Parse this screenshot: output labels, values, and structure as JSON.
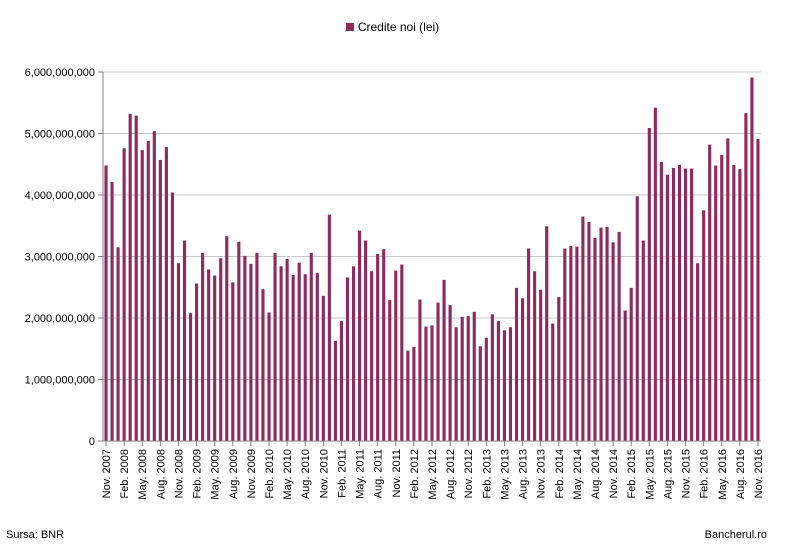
{
  "chart_data": {
    "type": "bar",
    "title": "",
    "xlabel": "",
    "ylabel": "",
    "ylim": [
      0,
      6000000000
    ],
    "yticks": [
      0,
      1000000000,
      2000000000,
      3000000000,
      4000000000,
      5000000000,
      6000000000
    ],
    "ytick_labels": [
      "0",
      "1,000,000,000",
      "2,000,000,000",
      "3,000,000,000",
      "4,000,000,000",
      "5,000,000,000",
      "6,000,000,000"
    ],
    "grid": true,
    "legend_position": "top-center",
    "series": [
      {
        "name": "Credite noi (lei)",
        "color": "#8e2b5e",
        "values": [
          4480000000,
          4210000000,
          3150000000,
          4760000000,
          5320000000,
          5290000000,
          4730000000,
          4880000000,
          5040000000,
          4570000000,
          4780000000,
          4040000000,
          2890000000,
          3260000000,
          2080000000,
          2560000000,
          3060000000,
          2790000000,
          2690000000,
          2970000000,
          3330000000,
          2580000000,
          3240000000,
          3010000000,
          2880000000,
          3060000000,
          2470000000,
          2090000000,
          3060000000,
          2840000000,
          2960000000,
          2700000000,
          2900000000,
          2710000000,
          3060000000,
          2730000000,
          2360000000,
          3680000000,
          1630000000,
          1950000000,
          2660000000,
          2840000000,
          3420000000,
          3260000000,
          2760000000,
          3040000000,
          3120000000,
          2290000000,
          2770000000,
          2870000000,
          1470000000,
          1530000000,
          2300000000,
          1860000000,
          1880000000,
          2250000000,
          2620000000,
          2210000000,
          1850000000,
          2020000000,
          2030000000,
          2100000000,
          1540000000,
          1680000000,
          2060000000,
          1950000000,
          1800000000,
          1850000000,
          2490000000,
          2320000000,
          3130000000,
          2760000000,
          2460000000,
          3490000000,
          1910000000,
          2340000000,
          3130000000,
          3170000000,
          3160000000,
          3650000000,
          3560000000,
          3300000000,
          3470000000,
          3480000000,
          3230000000,
          3400000000,
          2120000000,
          2490000000,
          3980000000,
          3260000000,
          5090000000,
          5420000000,
          4540000000,
          4330000000,
          4440000000,
          4490000000,
          4430000000,
          4430000000,
          2890000000,
          3750000000,
          4820000000,
          4480000000,
          4650000000,
          4920000000,
          4490000000,
          4420000000,
          5330000000,
          5910000000,
          4910000000
        ]
      }
    ],
    "x_tick_labels": [
      "Nov. 2007",
      "Feb. 2008",
      "May. 2008",
      "Aug. 2008",
      "Nov. 2008",
      "Feb. 2009",
      "May. 2009",
      "Aug. 2009",
      "Nov. 2009",
      "Feb. 2010",
      "May. 2010",
      "Aug. 2010",
      "Nov. 2010",
      "Feb. 2011",
      "May. 2011",
      "Aug. 2011",
      "Nov. 2011",
      "Feb. 2012",
      "May. 2012",
      "Aug. 2012",
      "Nov. 2012",
      "Feb. 2013",
      "May. 2013",
      "Aug. 2013",
      "Nov. 2013",
      "Feb. 2014",
      "May. 2014",
      "Aug. 2014",
      "Nov. 2014",
      "Feb. 2015",
      "May. 2015",
      "Aug. 2015",
      "Nov. 2015",
      "Feb. 2016",
      "May. 2016",
      "Aug. 2016",
      "Nov. 2016"
    ]
  },
  "footer": {
    "source": "Sursa: BNR",
    "brand": "Bancherul.ro"
  }
}
